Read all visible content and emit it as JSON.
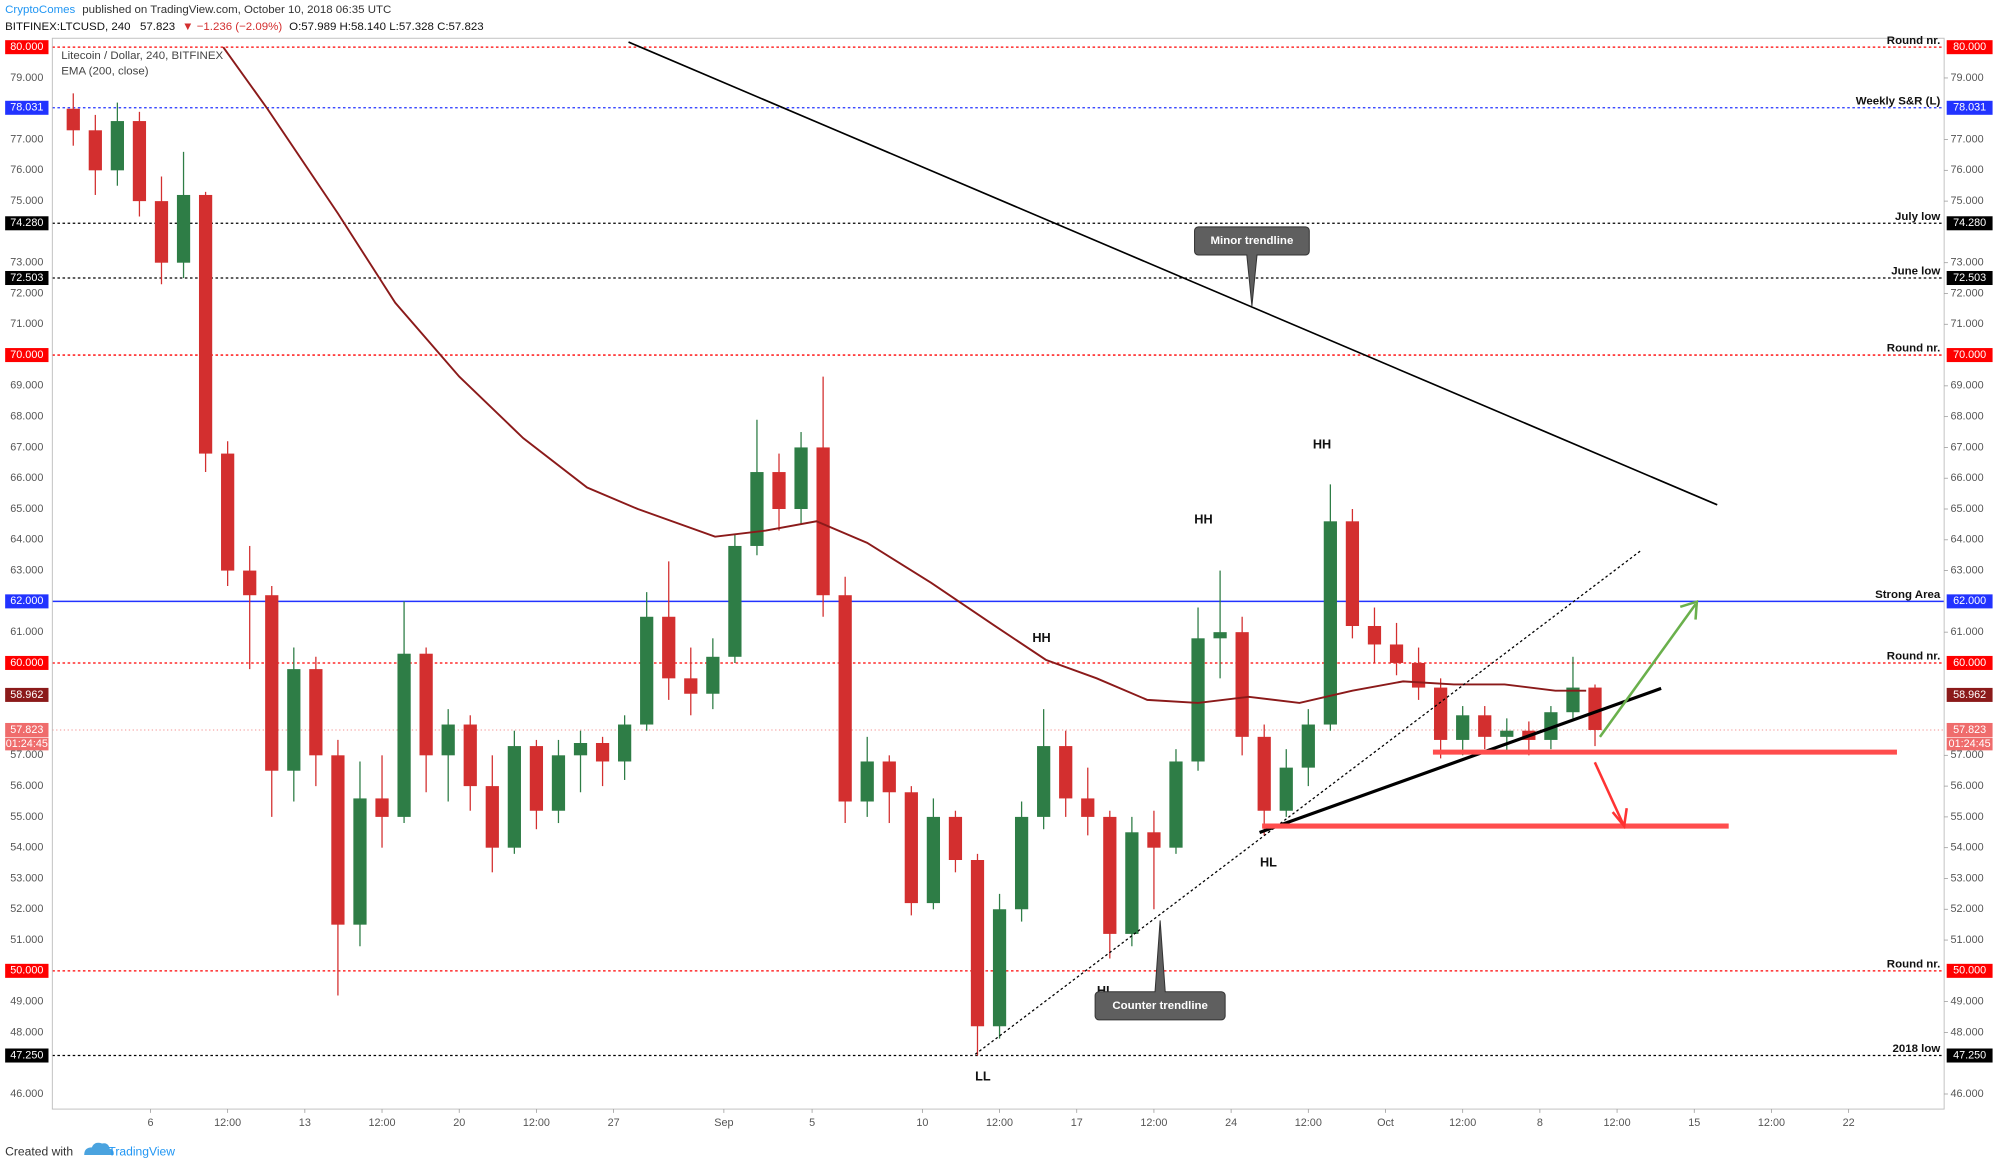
{
  "header": {
    "author": "CryptoComes",
    "published": "published on TradingView.com, October 10, 2018 06:35 UTC",
    "symbol": "BITFINEX:LTCUSD, 240",
    "price": "57.823",
    "change": "▼ −1.236 (−2.09%)",
    "ohlc": "O:57.989 H:58.140 L:57.328 C:57.823"
  },
  "footer": {
    "created": "Created with",
    "brand": "TradingView"
  },
  "chart_data": {
    "type": "candlestick",
    "title": "Litecoin / Dollar, 240, BITFINEX",
    "up_color": "#2e7d46",
    "down_color": "#d32f2f",
    "x": [
      2.5,
      3.5,
      4.5,
      5.5,
      6.5,
      7.5,
      8.5,
      9.5,
      10.5,
      11.5,
      12.5,
      13.5,
      14.5,
      15.5,
      16.5,
      17.5,
      18.5,
      19.5,
      20.5,
      21.5,
      22.5,
      23.5,
      24.5,
      25.5,
      26.5,
      27.5,
      28.5,
      29.5,
      30.5,
      31.5,
      32.5,
      33.5,
      34.5,
      35.5,
      36.5,
      37.5,
      38.5,
      39.5,
      40.5,
      41.5,
      42.5,
      43.5,
      44.5,
      45.5,
      46.5,
      47.5,
      48.5,
      49.5,
      50.5,
      51.5,
      52.5,
      53.5,
      54.5,
      55.5,
      56.5,
      57.5,
      58.5,
      59.5,
      60.5,
      61.5,
      62.5,
      63.5,
      64.5,
      65.5,
      66.5,
      67.5,
      68.5,
      69.5,
      70.5,
      71.5
    ],
    "open": [
      78.0,
      77.3,
      76.0,
      77.6,
      75.0,
      73.0,
      75.2,
      66.8,
      63.0,
      62.2,
      56.5,
      59.8,
      57.0,
      51.5,
      55.6,
      55.0,
      60.3,
      57.0,
      58.0,
      56.0,
      54.0,
      57.3,
      55.2,
      57.0,
      57.4,
      56.8,
      58.0,
      61.5,
      59.5,
      59.0,
      60.2,
      63.8,
      66.2,
      65.0,
      67.0,
      62.2,
      55.5,
      56.8,
      55.8,
      52.2,
      55.0,
      53.6,
      48.2,
      52.0,
      55.0,
      57.3,
      55.6,
      55.0,
      51.2,
      54.5,
      54.0,
      56.8,
      60.8,
      61.0,
      57.6,
      55.2,
      56.6,
      58.0,
      64.6,
      61.2,
      60.6,
      60.0,
      59.2,
      57.5,
      58.3,
      57.6,
      57.8,
      57.5,
      58.4,
      59.2
    ],
    "high": [
      78.5,
      77.8,
      78.2,
      77.9,
      75.8,
      76.6,
      75.3,
      67.2,
      63.8,
      62.5,
      60.5,
      60.2,
      57.5,
      56.8,
      57.0,
      62.0,
      60.5,
      58.5,
      58.3,
      57.0,
      57.8,
      57.5,
      57.5,
      57.8,
      57.6,
      58.3,
      62.3,
      63.3,
      60.5,
      60.8,
      64.2,
      67.9,
      66.8,
      67.5,
      69.3,
      62.8,
      57.6,
      57.0,
      56.0,
      55.6,
      55.2,
      53.8,
      52.5,
      55.5,
      58.5,
      57.8,
      56.6,
      55.2,
      55.0,
      55.2,
      57.2,
      61.8,
      63.0,
      61.5,
      58.0,
      57.2,
      58.5,
      65.8,
      65.0,
      61.8,
      61.3,
      60.5,
      59.5,
      58.6,
      58.6,
      58.2,
      58.1,
      58.6,
      60.2,
      59.3
    ],
    "low": [
      76.8,
      75.2,
      75.5,
      74.5,
      72.3,
      72.5,
      66.2,
      62.5,
      59.8,
      55.0,
      55.5,
      56.0,
      49.2,
      50.8,
      54.0,
      54.8,
      55.8,
      55.5,
      55.2,
      53.2,
      53.8,
      54.6,
      54.8,
      55.8,
      56.0,
      56.2,
      57.8,
      58.8,
      58.3,
      58.5,
      60.0,
      63.5,
      64.3,
      64.5,
      61.5,
      54.8,
      55.0,
      54.8,
      51.8,
      52.0,
      53.2,
      47.25,
      47.8,
      51.6,
      54.6,
      55.0,
      54.4,
      50.4,
      50.8,
      52.0,
      53.8,
      56.5,
      59.5,
      57.0,
      54.4,
      55.0,
      56.0,
      57.8,
      60.8,
      60.0,
      59.6,
      58.8,
      56.9,
      57.0,
      57.2,
      57.1,
      57.0,
      57.2,
      58.2,
      57.3
    ],
    "close": [
      77.3,
      76.0,
      77.6,
      75.0,
      73.0,
      75.2,
      66.8,
      63.0,
      62.2,
      56.5,
      59.8,
      57.0,
      51.5,
      55.6,
      55.0,
      60.3,
      57.0,
      58.0,
      56.0,
      54.0,
      57.3,
      55.2,
      57.0,
      57.4,
      56.8,
      58.0,
      61.5,
      59.5,
      59.0,
      60.2,
      63.8,
      66.2,
      65.0,
      67.0,
      62.2,
      55.5,
      56.8,
      55.8,
      52.2,
      55.0,
      53.6,
      48.2,
      52.0,
      55.0,
      57.3,
      55.6,
      55.0,
      51.2,
      54.5,
      54.0,
      56.8,
      60.8,
      61.0,
      57.6,
      55.2,
      56.6,
      58.0,
      64.6,
      61.2,
      60.6,
      60.0,
      59.2,
      57.5,
      58.3,
      57.6,
      57.8,
      57.5,
      58.4,
      59.2,
      57.823
    ],
    "ema": {
      "name": "EMA (200, close)",
      "color": "#8b1a1a",
      "x": [
        9.3,
        11.3,
        14.5,
        17.1,
        20.0,
        22.9,
        25.8,
        28.1,
        31.6,
        33.9,
        36.2,
        38.5,
        41.4,
        44.3,
        46.6,
        48.9,
        51.2,
        53.5,
        55.8,
        58.1,
        60.5,
        62.8,
        65.1,
        67.4,
        69.7,
        71.1
      ],
      "values": [
        80.0,
        78.0,
        74.6,
        71.7,
        69.3,
        67.3,
        65.7,
        65.0,
        64.1,
        64.3,
        64.6,
        63.9,
        62.6,
        61.2,
        60.1,
        59.5,
        58.8,
        58.7,
        58.9,
        58.7,
        59.1,
        59.4,
        59.3,
        59.3,
        59.1,
        59.1
      ],
      "last": {
        "value": 58.962,
        "label": "58.962"
      }
    },
    "current": {
      "value": 57.823,
      "label": "57.823",
      "timer": "01:24:45",
      "color": "#ef6c6c"
    },
    "levels": [
      {
        "value": 80,
        "label": "80.000",
        "name": "Round nr.",
        "color": "#ff0000",
        "style": "dotted"
      },
      {
        "value": 78.031,
        "label": "78.031",
        "name": "Weekly S&R (L)",
        "color": "#2233ff",
        "style": "dotted"
      },
      {
        "value": 74.28,
        "label": "74.280",
        "name": "July low",
        "color": "#000000",
        "style": "dotted"
      },
      {
        "value": 72.503,
        "label": "72.503",
        "name": "June low",
        "color": "#000000",
        "style": "dotted"
      },
      {
        "value": 70,
        "label": "70.000",
        "name": "Round nr.",
        "color": "#ff0000",
        "style": "dotted"
      },
      {
        "value": 62,
        "label": "62.000",
        "name": "Strong Area",
        "color": "#2233ff",
        "style": "solid"
      },
      {
        "value": 60,
        "label": "60.000",
        "name": "Round nr.",
        "color": "#ff0000",
        "style": "dotted"
      },
      {
        "value": 50,
        "label": "50.000",
        "name": "Round nr.",
        "color": "#ff0000",
        "style": "dotted"
      },
      {
        "value": 47.25,
        "label": "47.250",
        "name": "2018 low",
        "color": "#000000",
        "style": "dotted"
      }
    ],
    "annotations": [
      "HH",
      "HH",
      "HH",
      "HL",
      "HL",
      "LL",
      "Minor trendline",
      "Counter trendline"
    ],
    "xlim": [
      1.55,
      87.33
    ],
    "ylim": [
      45.51,
      80.29
    ],
    "xticks": [
      6,
      {
        "value": 9.5,
        "label": "12:00"
      },
      13,
      {
        "value": 16.5,
        "label": "12:00"
      },
      20,
      {
        "value": 23.5,
        "label": "12:00"
      },
      27,
      {
        "value": 32,
        "label": "Sep"
      },
      {
        "value": 36,
        "label": "5"
      },
      {
        "value": 41,
        "label": "10"
      },
      {
        "value": 44.5,
        "label": "12:00"
      },
      {
        "value": 48,
        "label": "17"
      },
      {
        "value": 51.5,
        "label": "12:00"
      },
      {
        "value": 55,
        "label": "24"
      },
      {
        "value": 58.5,
        "label": "12:00"
      },
      {
        "value": 62,
        "label": "Oct"
      },
      {
        "value": 65.5,
        "label": "12:00"
      },
      {
        "value": 69,
        "label": "8"
      },
      {
        "value": 72.5,
        "label": "12:00"
      },
      {
        "value": 76,
        "label": "15"
      },
      {
        "value": 79.5,
        "label": "12:00"
      },
      {
        "value": 83,
        "label": "22"
      }
    ],
    "yticks": [
      {
        "value": 79,
        "label": "79.000"
      },
      {
        "value": 77,
        "label": "77.000"
      },
      {
        "value": 76,
        "label": "76.000"
      },
      {
        "value": 75,
        "label": "75.000"
      },
      {
        "value": 73,
        "label": "73.000"
      },
      {
        "value": 72,
        "label": "72.000"
      },
      {
        "value": 71,
        "label": "71.000"
      },
      {
        "value": 69,
        "label": "69.000"
      },
      {
        "value": 68,
        "label": "68.000"
      },
      {
        "value": 67,
        "label": "67.000"
      },
      {
        "value": 66,
        "label": "66.000"
      },
      {
        "value": 65,
        "label": "65.000"
      },
      {
        "value": 64,
        "label": "64.000"
      },
      {
        "value": 63,
        "label": "63.000"
      },
      {
        "value": 61,
        "label": "61.000"
      },
      {
        "value": 57,
        "label": "57.000"
      },
      {
        "value": 56,
        "label": "56.000"
      },
      {
        "value": 55,
        "label": "55.000"
      },
      {
        "value": 54,
        "label": "54.000"
      },
      {
        "value": 53,
        "label": "53.000"
      },
      {
        "value": 52,
        "label": "52.000"
      },
      {
        "value": 51,
        "label": "51.000"
      },
      {
        "value": 49,
        "label": "49.000"
      },
      {
        "value": 48,
        "label": "48.000"
      },
      {
        "value": 46,
        "label": "46.000"
      }
    ]
  }
}
